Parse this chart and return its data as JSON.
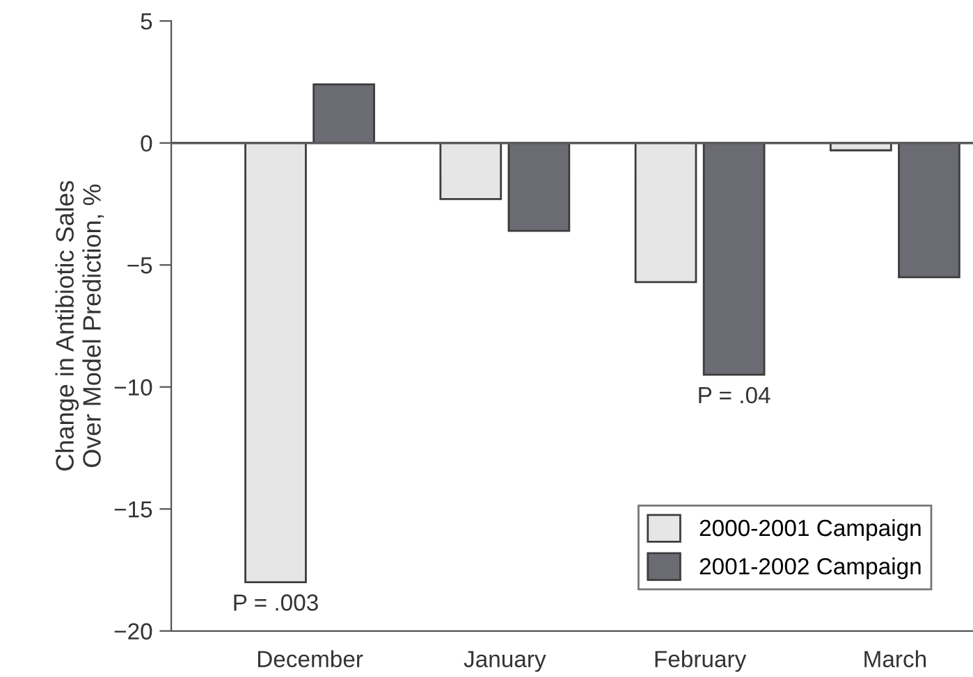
{
  "chart_data": {
    "type": "bar",
    "ylabel": "Change in Antibiotic Sales\nOver Model Prediction, %",
    "categories": [
      "December",
      "January",
      "February",
      "March"
    ],
    "series": [
      {
        "name": "2000-2001 Campaign",
        "color": "#e6e6e6",
        "values": [
          -18.0,
          -2.3,
          -5.7,
          -0.3
        ]
      },
      {
        "name": "2001-2002 Campaign",
        "color": "#6b6b73",
        "values": [
          2.4,
          -3.6,
          -9.5,
          -5.5
        ]
      }
    ],
    "ylim": [
      -20,
      5
    ],
    "yticks": [
      {
        "value": -20,
        "label": "−20"
      },
      {
        "value": -15,
        "label": "−15"
      },
      {
        "value": -10,
        "label": "−10"
      },
      {
        "value": -5,
        "label": "−5"
      },
      0,
      5
    ],
    "ref_lines": [
      {
        "axis": "y",
        "value": 0,
        "color": "#5a5a5a"
      }
    ],
    "annotations": [
      {
        "text": "P = .003",
        "x": "December",
        "y": -18.0
      },
      {
        "text": "P = .04",
        "x": "February",
        "y": -9.5
      }
    ],
    "grid": false,
    "legend": "bottom right"
  }
}
